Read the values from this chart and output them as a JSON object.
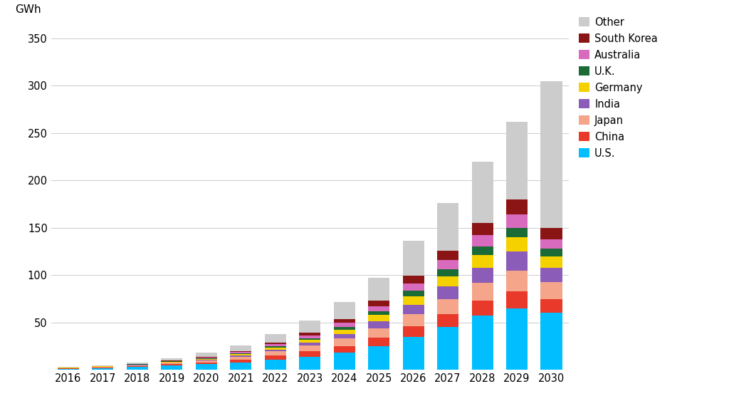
{
  "years": [
    2016,
    2017,
    2018,
    2019,
    2020,
    2021,
    2022,
    2023,
    2024,
    2025,
    2026,
    2027,
    2028,
    2029,
    2030
  ],
  "series": {
    "U.S.": [
      1.2,
      2.0,
      3.0,
      4.5,
      6.0,
      8.0,
      11.0,
      14.0,
      18.0,
      25.0,
      35.0,
      45.0,
      57.0,
      65.0,
      60.0
    ],
    "China": [
      0.4,
      0.7,
      1.0,
      1.5,
      2.0,
      3.0,
      4.0,
      5.5,
      7.0,
      9.0,
      11.0,
      14.0,
      16.0,
      18.0,
      15.0
    ],
    "Japan": [
      0.4,
      0.6,
      1.0,
      1.5,
      2.0,
      3.0,
      4.5,
      6.0,
      8.0,
      10.0,
      13.0,
      16.0,
      19.0,
      22.0,
      18.0
    ],
    "India": [
      0.1,
      0.2,
      0.3,
      0.5,
      0.8,
      1.2,
      2.0,
      3.0,
      4.5,
      7.0,
      10.0,
      13.0,
      16.0,
      20.0,
      15.0
    ],
    "Germany": [
      0.1,
      0.2,
      0.4,
      0.6,
      1.0,
      1.5,
      2.0,
      3.0,
      5.0,
      7.0,
      9.0,
      11.0,
      13.0,
      15.0,
      12.0
    ],
    "U.K.": [
      0.1,
      0.1,
      0.2,
      0.4,
      0.6,
      1.0,
      1.5,
      2.0,
      3.0,
      4.0,
      5.5,
      7.0,
      9.0,
      10.0,
      8.0
    ],
    "Australia": [
      0.1,
      0.2,
      0.3,
      0.5,
      0.8,
      1.2,
      2.0,
      3.0,
      4.0,
      5.5,
      8.0,
      10.0,
      12.0,
      14.0,
      10.0
    ],
    "South Korea": [
      0.1,
      0.1,
      0.3,
      0.4,
      0.7,
      1.0,
      1.5,
      2.5,
      4.0,
      5.5,
      8.0,
      10.0,
      13.0,
      16.0,
      12.0
    ],
    "Other": [
      0.5,
      0.9,
      1.5,
      2.6,
      4.1,
      6.1,
      9.5,
      13.0,
      18.5,
      24.0,
      36.5,
      50.0,
      65.0,
      82.0,
      155.0
    ]
  },
  "colors": {
    "U.S.": "#00BEFF",
    "China": "#E8392A",
    "Japan": "#F4A58A",
    "India": "#8B5DB8",
    "Germany": "#F5D100",
    "U.K.": "#1A6B35",
    "Australia": "#D96BBF",
    "South Korea": "#8B1515",
    "Other": "#CCCCCC"
  },
  "ylabel": "GWh",
  "ylim": [
    0,
    360
  ],
  "yticks": [
    0,
    50,
    100,
    150,
    200,
    250,
    300,
    350
  ],
  "background_color": "#FFFFFF",
  "legend_order": [
    "Other",
    "South Korea",
    "Australia",
    "U.K.",
    "Germany",
    "India",
    "Japan",
    "China",
    "U.S."
  ]
}
